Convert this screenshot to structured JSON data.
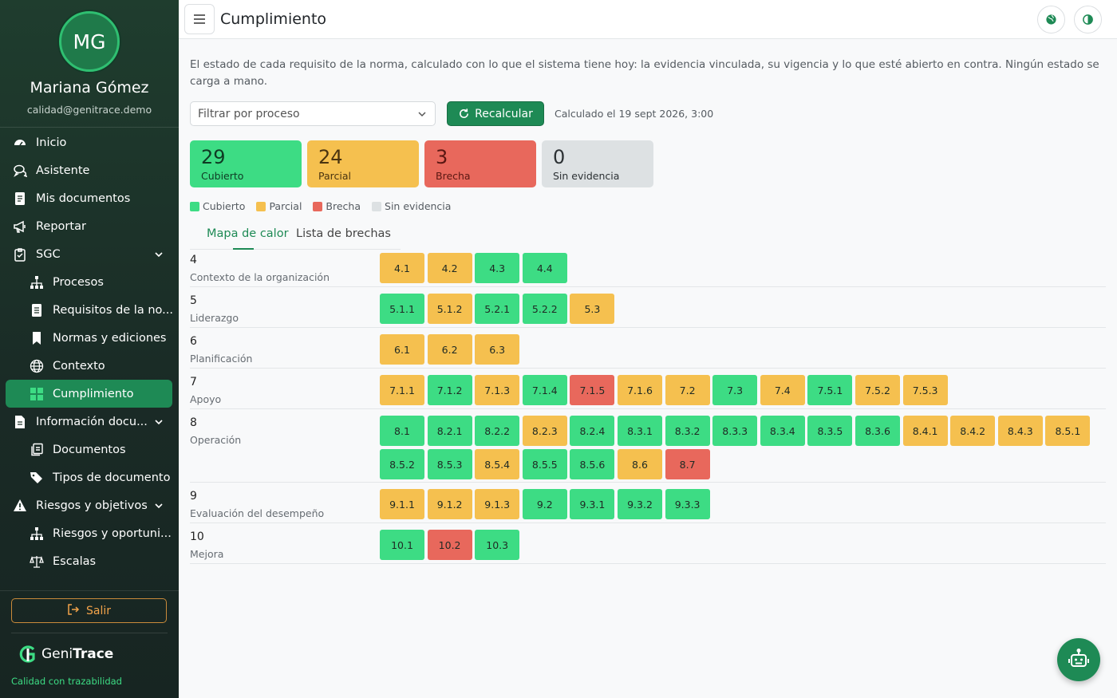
{
  "colors": {
    "cubierto": "#3ddc84",
    "parcial": "#f5c04f",
    "brecha": "#e8685c",
    "sin_evidencia": "#dde1e3",
    "accent": "#1e8a55"
  },
  "profile": {
    "initials": "MG",
    "name": "Mariana Gómez",
    "email": "calidad@genitrace.demo"
  },
  "nav": [
    {
      "label": "Inicio",
      "icon": "dashboard-icon",
      "level": 1
    },
    {
      "label": "Asistente",
      "icon": "chat-icon",
      "level": 1
    },
    {
      "label": "Mis documentos",
      "icon": "document-icon",
      "level": 1
    },
    {
      "label": "Reportar",
      "icon": "megaphone-icon",
      "level": 1
    },
    {
      "label": "SGC",
      "icon": "clipboard-check-icon",
      "level": 1,
      "expandable": true
    },
    {
      "label": "Procesos",
      "icon": "sitemap-icon",
      "level": 2
    },
    {
      "label": "Requisitos de la no...",
      "icon": "document-list-icon",
      "level": 2
    },
    {
      "label": "Normas y ediciones",
      "icon": "bookmark-icon",
      "level": 2
    },
    {
      "label": "Contexto",
      "icon": "globe-icon",
      "level": 2
    },
    {
      "label": "Cumplimiento",
      "icon": "grid-icon",
      "level": 2,
      "active": true
    },
    {
      "label": "Información docu...",
      "icon": "file-icon",
      "level": 1,
      "expandable": true
    },
    {
      "label": "Documentos",
      "icon": "documents-icon",
      "level": 2
    },
    {
      "label": "Tipos de documento",
      "icon": "tags-icon",
      "level": 2
    },
    {
      "label": "Riesgos y objetivos",
      "icon": "warning-icon",
      "level": 1,
      "expandable": true
    },
    {
      "label": "Riesgos y oportuni...",
      "icon": "sitemap-icon",
      "level": 2
    },
    {
      "label": "Escalas",
      "icon": "scale-icon",
      "level": 2
    }
  ],
  "logout_label": "Salir",
  "brand": {
    "name_plain": "Geni",
    "name_bold": "Trace",
    "tagline": "Calidad con trazabilidad"
  },
  "topbar": {
    "title": "Cumplimiento"
  },
  "intro": "El estado de cada requisito de la norma, calculado con lo que el sistema tiene hoy: la evidencia vinculada, su vigencia y lo que esté abierto en contra. Ningún estado se carga a mano.",
  "filter": {
    "placeholder": "Filtrar por proceso"
  },
  "recalc_label": "Recalcular",
  "calc_time": "Calculado el 19 sept 2026, 3:00",
  "stats": [
    {
      "value": "29",
      "label": "Cubierto",
      "status": "cubierto"
    },
    {
      "value": "24",
      "label": "Parcial",
      "status": "parcial"
    },
    {
      "value": "3",
      "label": "Brecha",
      "status": "brecha"
    },
    {
      "value": "0",
      "label": "Sin evidencia",
      "status": "sin_evidencia"
    }
  ],
  "legend": [
    {
      "label": "Cubierto",
      "status": "cubierto"
    },
    {
      "label": "Parcial",
      "status": "parcial"
    },
    {
      "label": "Brecha",
      "status": "brecha"
    },
    {
      "label": "Sin evidencia",
      "status": "sin_evidencia"
    }
  ],
  "tabs": [
    {
      "label": "Mapa de calor",
      "active": true
    },
    {
      "label": "Lista de brechas",
      "active": false
    }
  ],
  "clauses": [
    {
      "num": "4",
      "name": "Contexto de la organización",
      "items": [
        {
          "id": "4.1",
          "s": "parcial"
        },
        {
          "id": "4.2",
          "s": "parcial"
        },
        {
          "id": "4.3",
          "s": "cubierto"
        },
        {
          "id": "4.4",
          "s": "cubierto"
        }
      ]
    },
    {
      "num": "5",
      "name": "Liderazgo",
      "items": [
        {
          "id": "5.1.1",
          "s": "cubierto"
        },
        {
          "id": "5.1.2",
          "s": "parcial"
        },
        {
          "id": "5.2.1",
          "s": "cubierto"
        },
        {
          "id": "5.2.2",
          "s": "cubierto"
        },
        {
          "id": "5.3",
          "s": "parcial"
        }
      ]
    },
    {
      "num": "6",
      "name": "Planificación",
      "items": [
        {
          "id": "6.1",
          "s": "parcial"
        },
        {
          "id": "6.2",
          "s": "parcial"
        },
        {
          "id": "6.3",
          "s": "parcial"
        }
      ]
    },
    {
      "num": "7",
      "name": "Apoyo",
      "items": [
        {
          "id": "7.1.1",
          "s": "parcial"
        },
        {
          "id": "7.1.2",
          "s": "cubierto"
        },
        {
          "id": "7.1.3",
          "s": "parcial"
        },
        {
          "id": "7.1.4",
          "s": "cubierto"
        },
        {
          "id": "7.1.5",
          "s": "brecha"
        },
        {
          "id": "7.1.6",
          "s": "parcial"
        },
        {
          "id": "7.2",
          "s": "parcial"
        },
        {
          "id": "7.3",
          "s": "cubierto"
        },
        {
          "id": "7.4",
          "s": "parcial"
        },
        {
          "id": "7.5.1",
          "s": "cubierto"
        },
        {
          "id": "7.5.2",
          "s": "parcial"
        },
        {
          "id": "7.5.3",
          "s": "parcial"
        }
      ]
    },
    {
      "num": "8",
      "name": "Operación",
      "items": [
        {
          "id": "8.1",
          "s": "cubierto"
        },
        {
          "id": "8.2.1",
          "s": "cubierto"
        },
        {
          "id": "8.2.2",
          "s": "cubierto"
        },
        {
          "id": "8.2.3",
          "s": "parcial"
        },
        {
          "id": "8.2.4",
          "s": "cubierto"
        },
        {
          "id": "8.3.1",
          "s": "cubierto"
        },
        {
          "id": "8.3.2",
          "s": "cubierto"
        },
        {
          "id": "8.3.3",
          "s": "cubierto"
        },
        {
          "id": "8.3.4",
          "s": "cubierto"
        },
        {
          "id": "8.3.5",
          "s": "cubierto"
        },
        {
          "id": "8.3.6",
          "s": "cubierto"
        },
        {
          "id": "8.4.1",
          "s": "parcial"
        },
        {
          "id": "8.4.2",
          "s": "parcial"
        },
        {
          "id": "8.4.3",
          "s": "parcial"
        },
        {
          "id": "8.5.1",
          "s": "parcial"
        },
        {
          "id": "8.5.2",
          "s": "cubierto"
        },
        {
          "id": "8.5.3",
          "s": "cubierto"
        },
        {
          "id": "8.5.4",
          "s": "parcial"
        },
        {
          "id": "8.5.5",
          "s": "cubierto"
        },
        {
          "id": "8.5.6",
          "s": "cubierto"
        },
        {
          "id": "8.6",
          "s": "parcial"
        },
        {
          "id": "8.7",
          "s": "brecha"
        }
      ]
    },
    {
      "num": "9",
      "name": "Evaluación del desempeño",
      "items": [
        {
          "id": "9.1.1",
          "s": "parcial"
        },
        {
          "id": "9.1.2",
          "s": "parcial"
        },
        {
          "id": "9.1.3",
          "s": "parcial"
        },
        {
          "id": "9.2",
          "s": "cubierto"
        },
        {
          "id": "9.3.1",
          "s": "cubierto"
        },
        {
          "id": "9.3.2",
          "s": "cubierto"
        },
        {
          "id": "9.3.3",
          "s": "cubierto"
        }
      ]
    },
    {
      "num": "10",
      "name": "Mejora",
      "items": [
        {
          "id": "10.1",
          "s": "cubierto"
        },
        {
          "id": "10.2",
          "s": "brecha"
        },
        {
          "id": "10.3",
          "s": "cubierto"
        }
      ]
    }
  ]
}
